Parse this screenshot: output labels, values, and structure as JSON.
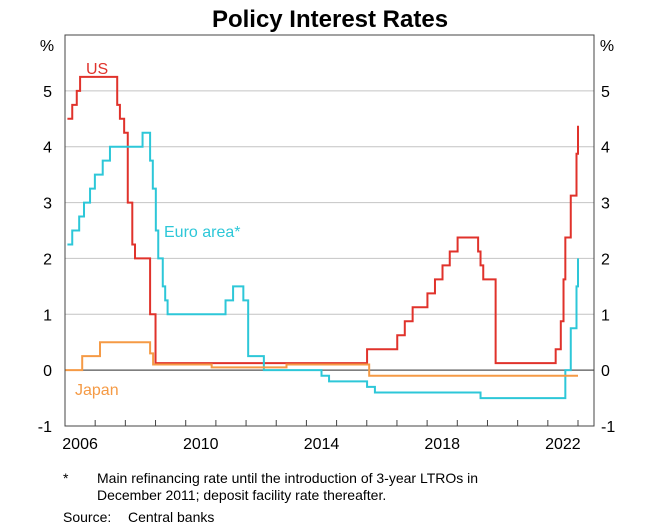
{
  "chart_data": {
    "type": "line",
    "title": "Policy Interest Rates",
    "ylabel_left": "%",
    "ylabel_right": "%",
    "xlim": [
      2006.0,
      2023.53
    ],
    "ylim": [
      -1,
      6
    ],
    "yticks": [
      -1,
      0,
      1,
      2,
      3,
      4,
      5
    ],
    "xtick_labels": [
      "2006",
      "2010",
      "2014",
      "2018",
      "2022"
    ],
    "grid": true,
    "step": true,
    "series": [
      {
        "name": "US",
        "color": "#e0322b",
        "end_x": 2023.0,
        "points": [
          [
            2006.08,
            4.5
          ],
          [
            2006.24,
            4.75
          ],
          [
            2006.39,
            5.0
          ],
          [
            2006.5,
            5.25
          ],
          [
            2007.73,
            4.75
          ],
          [
            2007.82,
            4.5
          ],
          [
            2007.96,
            4.25
          ],
          [
            2008.08,
            3.0
          ],
          [
            2008.23,
            2.25
          ],
          [
            2008.32,
            2.0
          ],
          [
            2008.82,
            1.0
          ],
          [
            2009.0,
            0.125
          ],
          [
            2016.01,
            0.375
          ],
          [
            2017.01,
            0.625
          ],
          [
            2017.26,
            0.875
          ],
          [
            2017.52,
            1.125
          ],
          [
            2018.01,
            1.375
          ],
          [
            2018.26,
            1.625
          ],
          [
            2018.51,
            1.875
          ],
          [
            2018.75,
            2.125
          ],
          [
            2019.01,
            2.375
          ],
          [
            2019.69,
            2.125
          ],
          [
            2019.77,
            1.875
          ],
          [
            2019.86,
            1.625
          ],
          [
            2020.27,
            0.125
          ],
          [
            2022.26,
            0.375
          ],
          [
            2022.43,
            0.875
          ],
          [
            2022.52,
            1.625
          ],
          [
            2022.58,
            2.375
          ],
          [
            2022.76,
            3.125
          ],
          [
            2022.95,
            3.875
          ],
          [
            2023.0,
            4.375
          ]
        ]
      },
      {
        "name": "Euro area*",
        "color": "#2dc7d8",
        "end_x": 2023.0,
        "points": [
          [
            2006.08,
            2.25
          ],
          [
            2006.24,
            2.5
          ],
          [
            2006.47,
            2.75
          ],
          [
            2006.63,
            3.0
          ],
          [
            2006.83,
            3.25
          ],
          [
            2006.99,
            3.5
          ],
          [
            2007.25,
            3.75
          ],
          [
            2007.49,
            4.0
          ],
          [
            2008.57,
            4.25
          ],
          [
            2008.82,
            3.75
          ],
          [
            2008.91,
            3.25
          ],
          [
            2009.01,
            2.5
          ],
          [
            2009.09,
            2.0
          ],
          [
            2009.24,
            1.5
          ],
          [
            2009.32,
            1.25
          ],
          [
            2009.4,
            1.0
          ],
          [
            2011.32,
            1.25
          ],
          [
            2011.57,
            1.5
          ],
          [
            2011.91,
            1.25
          ],
          [
            2012.07,
            0.25
          ],
          [
            2012.59,
            0.0
          ],
          [
            2014.5,
            -0.1
          ],
          [
            2014.75,
            -0.2
          ],
          [
            2016.01,
            -0.3
          ],
          [
            2016.27,
            -0.4
          ],
          [
            2019.77,
            -0.5
          ],
          [
            2022.58,
            0.0
          ],
          [
            2022.76,
            0.75
          ],
          [
            2022.95,
            1.5
          ],
          [
            2023.0,
            2.0
          ]
        ]
      },
      {
        "name": "Japan",
        "color": "#f59a45",
        "end_x": 2023.0,
        "points": [
          [
            2006.0,
            0.0
          ],
          [
            2006.57,
            0.25
          ],
          [
            2007.16,
            0.5
          ],
          [
            2008.82,
            0.3
          ],
          [
            2008.92,
            0.1
          ],
          [
            2010.86,
            0.05
          ],
          [
            2013.34,
            0.1
          ],
          [
            2016.08,
            -0.1
          ]
        ]
      }
    ]
  },
  "footnote": {
    "marker": "*",
    "line1": "Main refinancing rate until the introduction of 3-year LTROs in",
    "line2": "December 2011; deposit facility rate thereafter."
  },
  "source": {
    "label": "Source:",
    "text": "Central banks"
  }
}
